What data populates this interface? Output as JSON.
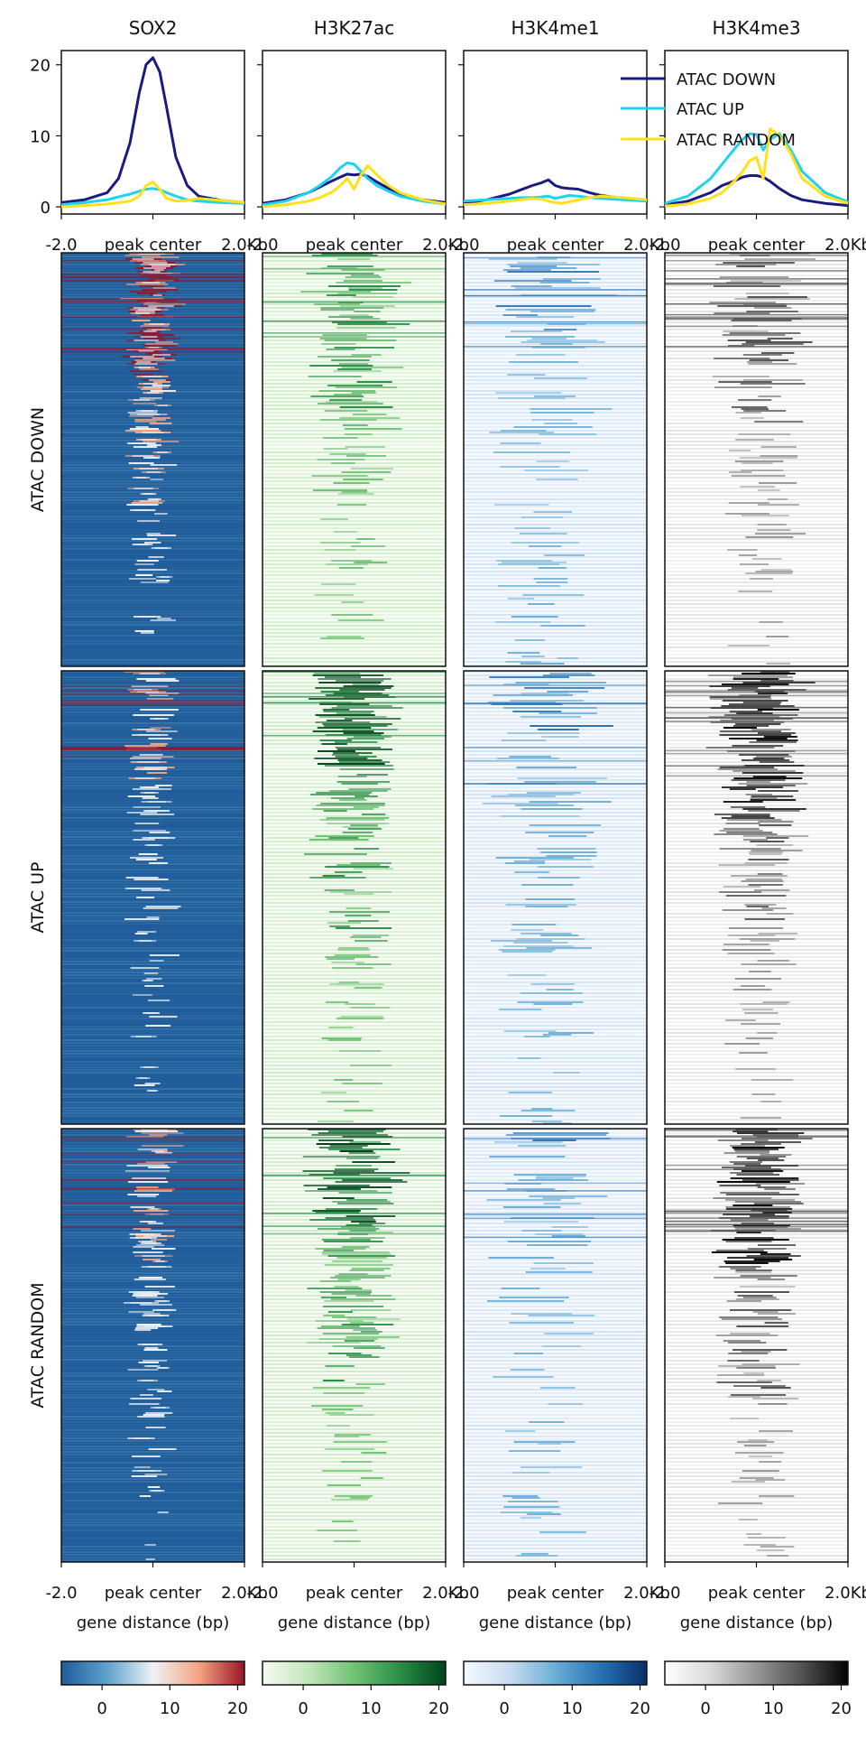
{
  "chart_data": {
    "type": "heatmap",
    "columns": [
      {
        "title": "SOX2",
        "colormap": "RdBu_r",
        "colors": [
          "#1f5c99",
          "#5fa0cc",
          "#eef2f7",
          "#f4a582",
          "#9b1326"
        ]
      },
      {
        "title": "H3K27ac",
        "colormap": "Greens",
        "colors": [
          "#f6fbf3",
          "#c2e6bb",
          "#71c275",
          "#2a8e47",
          "#00441b"
        ]
      },
      {
        "title": "H3K4me1",
        "colormap": "Blues",
        "colors": [
          "#f5f9fe",
          "#c7dcef",
          "#6baed6",
          "#2671b4",
          "#08306b"
        ]
      },
      {
        "title": "H3K4me3",
        "colormap": "Greys",
        "colors": [
          "#ffffff",
          "#d9d9d9",
          "#969696",
          "#525252",
          "#000000"
        ]
      }
    ],
    "rows": [
      {
        "label": "ATAC DOWN",
        "color": "#1a1a80"
      },
      {
        "label": "ATAC UP",
        "color": "#1fd2f0"
      },
      {
        "label": "ATAC RANDOM",
        "color": "#ffe01a"
      }
    ],
    "profile": {
      "x": [
        -2000,
        -1500,
        -1000,
        -750,
        -500,
        -300,
        -150,
        0,
        150,
        300,
        500,
        750,
        1000,
        1500,
        2000
      ],
      "ylim": [
        -1,
        22
      ],
      "yticks": [
        0,
        10,
        20
      ],
      "series": {
        "SOX2": [
          [
            0.6,
            1.0,
            2.0,
            4.0,
            9.0,
            16.0,
            20.0,
            21.0,
            19.0,
            14.0,
            7.0,
            3.0,
            1.5,
            0.9,
            0.6
          ],
          [
            0.3,
            0.6,
            1.0,
            1.4,
            1.8,
            2.2,
            2.5,
            2.6,
            2.4,
            2.0,
            1.5,
            1.0,
            0.8,
            0.6,
            0.5
          ],
          [
            0.0,
            0.2,
            0.4,
            0.6,
            0.8,
            1.5,
            3.0,
            3.5,
            2.5,
            1.2,
            0.8,
            0.9,
            1.2,
            0.9,
            0.6
          ]
        ],
        "H3K27ac": [
          [
            0.5,
            1.0,
            2.0,
            2.8,
            3.6,
            4.2,
            4.6,
            4.5,
            4.6,
            4.3,
            3.5,
            2.6,
            1.8,
            1.0,
            0.6
          ],
          [
            0.3,
            0.8,
            2.0,
            3.0,
            4.2,
            5.5,
            6.2,
            6.0,
            5.0,
            4.0,
            3.0,
            2.2,
            1.5,
            0.8,
            0.4
          ],
          [
            0.0,
            0.3,
            0.8,
            1.3,
            2.0,
            3.0,
            4.0,
            2.5,
            4.5,
            5.8,
            4.5,
            3.0,
            2.0,
            1.0,
            0.4
          ]
        ],
        "H3K4me1": [
          [
            0.5,
            1.0,
            1.8,
            2.4,
            3.0,
            3.4,
            3.8,
            3.0,
            2.7,
            2.6,
            2.5,
            2.0,
            1.6,
            1.2,
            0.9
          ],
          [
            0.8,
            1.0,
            1.2,
            1.3,
            1.3,
            1.4,
            1.5,
            1.2,
            1.4,
            1.6,
            1.5,
            1.3,
            1.2,
            1.0,
            0.8
          ],
          [
            0.3,
            0.5,
            0.8,
            1.0,
            1.2,
            1.1,
            0.8,
            0.6,
            0.5,
            0.7,
            1.0,
            1.3,
            1.5,
            1.3,
            1.0
          ]
        ],
        "H3K4me3": [
          [
            0.3,
            0.8,
            2.0,
            3.0,
            3.6,
            4.2,
            4.4,
            4.4,
            4.2,
            3.6,
            2.6,
            1.6,
            1.0,
            0.5,
            0.2
          ],
          [
            0.5,
            1.5,
            4.0,
            6.0,
            8.0,
            9.5,
            10.3,
            10.2,
            8.0,
            9.5,
            10.3,
            8.0,
            5.0,
            2.0,
            0.7
          ],
          [
            0.1,
            0.4,
            1.2,
            2.0,
            3.5,
            5.0,
            6.5,
            7.0,
            4.0,
            11.0,
            10.0,
            7.5,
            4.0,
            1.5,
            0.5
          ]
        ]
      }
    },
    "xticks": {
      "left": "-2.0",
      "center": "peak center",
      "right": "2.0Kb"
    },
    "xlabel": "gene distance (bp)",
    "colorbar": {
      "ticks": [
        0,
        10,
        20
      ],
      "range": [
        -6,
        21
      ]
    },
    "legend": {
      "placement": "upper-right"
    }
  }
}
